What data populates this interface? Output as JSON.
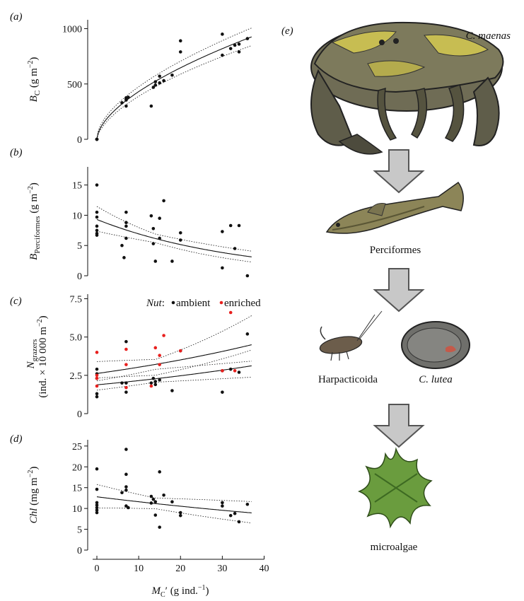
{
  "chart_data": [
    {
      "panel": "(a)",
      "type": "scatter",
      "ylabel": "B_C (g m^-2)",
      "ylabel_main": "B",
      "ylabel_sub": "C",
      "ylabel_unit": "(g m",
      "ylabel_exp": "−2",
      "ylabel_close": ")",
      "xlim": [
        -2,
        40
      ],
      "ylim": [
        0,
        1080
      ],
      "yticks": [
        0,
        500,
        1000
      ],
      "yticklabels": [
        "0",
        "500",
        "1000"
      ],
      "points_ambient": [
        [
          0,
          0
        ],
        [
          0,
          0
        ],
        [
          0,
          0
        ],
        [
          0,
          0
        ],
        [
          6,
          330
        ],
        [
          7,
          355
        ],
        [
          7,
          375
        ],
        [
          7,
          365
        ],
        [
          7,
          300
        ],
        [
          7.5,
          380
        ],
        [
          13,
          300
        ],
        [
          13.5,
          470
        ],
        [
          14,
          490
        ],
        [
          14,
          520
        ],
        [
          15,
          510
        ],
        [
          15,
          570
        ],
        [
          16,
          530
        ],
        [
          18,
          580
        ],
        [
          20,
          890
        ],
        [
          20,
          790
        ],
        [
          30,
          950
        ],
        [
          30,
          760
        ],
        [
          32,
          820
        ],
        [
          33,
          850
        ],
        [
          34,
          860
        ],
        [
          34,
          790
        ],
        [
          36,
          910
        ]
      ],
      "fit": "power",
      "fit_a": 112,
      "fit_b": 0.585,
      "ci": "upper_lower"
    },
    {
      "panel": "(b)",
      "type": "scatter",
      "ylabel_main": "B",
      "ylabel_sub": "Perciformes",
      "ylabel_unit": "(g m",
      "ylabel_exp": "−2",
      "ylabel_close": ")",
      "xlim": [
        -2,
        40
      ],
      "ylim": [
        0,
        18
      ],
      "yticks": [
        0,
        5,
        10,
        15
      ],
      "yticklabels": [
        "0",
        "5",
        "10",
        "15"
      ],
      "points_ambient": [
        [
          0,
          15
        ],
        [
          0,
          10.5
        ],
        [
          0,
          9.7
        ],
        [
          0,
          8.2
        ],
        [
          0,
          7.5
        ],
        [
          0,
          7.0
        ],
        [
          0,
          6.7
        ],
        [
          6,
          5.0
        ],
        [
          6.5,
          3.0
        ],
        [
          7,
          10.5
        ],
        [
          7,
          8.8
        ],
        [
          7,
          8.2
        ],
        [
          7,
          6.2
        ],
        [
          13,
          9.9
        ],
        [
          13.5,
          7.8
        ],
        [
          13.5,
          5.3
        ],
        [
          14,
          2.4
        ],
        [
          15,
          9.5
        ],
        [
          15,
          6.2
        ],
        [
          16,
          12.4
        ],
        [
          18,
          2.4
        ],
        [
          20,
          7.1
        ],
        [
          20,
          5.9
        ],
        [
          30,
          1.3
        ],
        [
          30,
          7.3
        ],
        [
          32,
          8.3
        ],
        [
          33,
          4.5
        ],
        [
          34,
          8.3
        ],
        [
          36,
          0
        ]
      ],
      "fit": "exp",
      "fit_a": 9.3,
      "fit_k": -0.0295,
      "ci": "upper_lower"
    },
    {
      "panel": "(c)",
      "type": "scatter",
      "ylabel_main": "N",
      "ylabel_sub": "grazers",
      "ylabel2": "(ind. × 10 000 m",
      "ylabel2_exp": "−2",
      "ylabel2_close": ")",
      "xlim": [
        -2,
        40
      ],
      "ylim": [
        0,
        7.8
      ],
      "yticks": [
        0,
        2.5,
        5.0,
        7.5
      ],
      "yticklabels": [
        "0",
        "2.5",
        "5.0",
        "7.5"
      ],
      "legend": {
        "prefix": "Nut",
        "sep": ":",
        "items": [
          {
            "name": "ambient",
            "color": "#111111"
          },
          {
            "name": "enriched",
            "color": "#e8201e"
          }
        ],
        "placement": "top-right"
      },
      "points_ambient": [
        [
          0,
          2.9
        ],
        [
          0,
          2.6
        ],
        [
          0,
          2.3
        ],
        [
          0,
          1.3
        ],
        [
          0,
          1.1
        ],
        [
          6,
          2.0
        ],
        [
          7,
          1.4
        ],
        [
          7,
          2.0
        ],
        [
          7,
          4.7
        ],
        [
          13,
          2.0
        ],
        [
          13.5,
          2.3
        ],
        [
          14,
          1.9
        ],
        [
          14,
          2.1
        ],
        [
          15,
          2.2
        ],
        [
          18,
          1.5
        ],
        [
          20,
          4.1
        ],
        [
          30,
          1.4
        ],
        [
          30,
          2.8
        ],
        [
          32,
          2.9
        ],
        [
          34,
          2.7
        ],
        [
          36,
          5.2
        ]
      ],
      "points_enriched": [
        [
          0,
          4.0
        ],
        [
          0,
          2.5
        ],
        [
          0,
          2.3
        ],
        [
          0,
          1.8
        ],
        [
          7,
          4.2
        ],
        [
          7,
          3.2
        ],
        [
          7,
          1.7
        ],
        [
          13,
          1.8
        ],
        [
          14,
          4.3
        ],
        [
          15,
          3.8
        ],
        [
          15,
          3.2
        ],
        [
          16,
          5.1
        ],
        [
          20,
          4.1
        ],
        [
          30,
          2.8
        ],
        [
          32,
          6.6
        ],
        [
          33,
          2.8
        ]
      ],
      "fit_ambient": {
        "fit": "exp",
        "a": 1.88,
        "k": 0.0137
      },
      "fit_enriched": {
        "fit": "exp",
        "a": 2.62,
        "k": 0.0146
      },
      "ci": "upper_lower"
    },
    {
      "panel": "(d)",
      "type": "scatter",
      "ylabel_main": "Chl",
      "ylabel_unit": "(mg m",
      "ylabel_exp": "−2",
      "ylabel_close": ")",
      "xlabel_main": "M",
      "xlabel_sub": "C",
      "xlabel_prime": "′",
      "xlabel_unit": "(g ind.",
      "xlabel_exp": "−1",
      "xlabel_close": ")",
      "xlim": [
        -2,
        40
      ],
      "ylim": [
        0,
        26.5
      ],
      "yticks": [
        0,
        5,
        10,
        15,
        20,
        25
      ],
      "yticklabels": [
        "0",
        "5",
        "10",
        "15",
        "20",
        "25"
      ],
      "xticks": [
        0,
        10,
        20,
        30,
        40
      ],
      "xticklabels": [
        "0",
        "10",
        "20",
        "30",
        "40"
      ],
      "points_ambient": [
        [
          0,
          19.5
        ],
        [
          0,
          14.6
        ],
        [
          0,
          11.4
        ],
        [
          0,
          10.8
        ],
        [
          0,
          10.2
        ],
        [
          0,
          9.6
        ],
        [
          0,
          9.0
        ],
        [
          6,
          13.8
        ],
        [
          7,
          24.2
        ],
        [
          7,
          18.2
        ],
        [
          7,
          15.2
        ],
        [
          7,
          14.4
        ],
        [
          7,
          10.6
        ],
        [
          7.5,
          10.2
        ],
        [
          13,
          11.3
        ],
        [
          13,
          12.9
        ],
        [
          13.5,
          12.2
        ],
        [
          14,
          11.6
        ],
        [
          14,
          8.4
        ],
        [
          15,
          18.8
        ],
        [
          15,
          5.5
        ],
        [
          16,
          13.2
        ],
        [
          18,
          11.6
        ],
        [
          20,
          9.0
        ],
        [
          20,
          8.3
        ],
        [
          30,
          11.4
        ],
        [
          30,
          10.6
        ],
        [
          32,
          8.3
        ],
        [
          33,
          8.8
        ],
        [
          34,
          6.8
        ],
        [
          36,
          11.0
        ]
      ],
      "fit": "exp",
      "fit_a": 12.8,
      "fit_k": -0.0097,
      "ci": "upper_lower"
    }
  ],
  "panel_e": {
    "letter": "(e)",
    "crab_label": "C. maenas",
    "fish_label": "Perciformes",
    "copepod_label": "Harpacticoida",
    "snail_label": "C. lutea",
    "algae_label": "microalgae"
  },
  "colors": {
    "ambient": "#111111",
    "enriched": "#e8201e",
    "arrow_fill": "#c8c8c8",
    "arrow_stroke": "#555555"
  }
}
